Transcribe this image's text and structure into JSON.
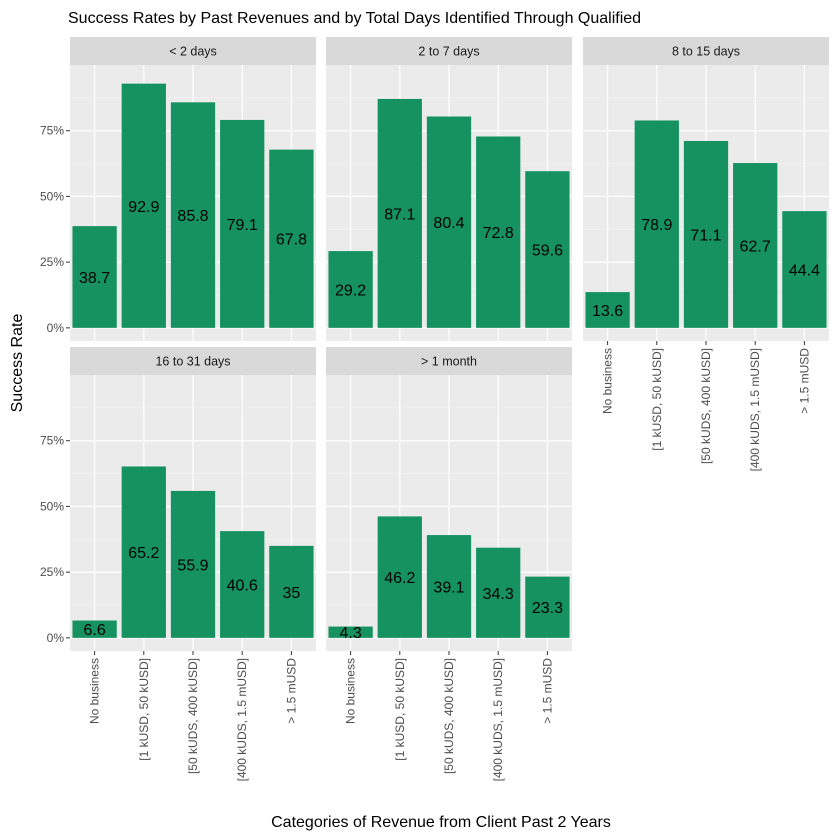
{
  "chart_data": {
    "type": "bar",
    "title": "Success Rates by Past Revenues and by Total Days Identified Through Qualified",
    "xlabel": "Categories of Revenue from Client Past 2 Years",
    "ylabel": "Success Rate",
    "categories": [
      "No business",
      "[1 kUSD, 50 kUSD]",
      "[50 kUDS, 400 kUSD]",
      "[400 kUDS, 1.5 mUSD]",
      "> 1.5 mUSD"
    ],
    "yticks": [
      0,
      25,
      50,
      75
    ],
    "ytick_labels": [
      "0%",
      "25%",
      "50%",
      "75%"
    ],
    "ylim": [
      0,
      100
    ],
    "bar_color": "#15925f",
    "panel_bg": "#ebebeb",
    "strip_bg": "#d9d9d9",
    "facets": [
      {
        "label": "< 2 days",
        "values": [
          38.7,
          92.9,
          85.8,
          79.1,
          67.8
        ],
        "labels": [
          "38.7",
          "92.9",
          "85.8",
          "79.1",
          "67.8"
        ]
      },
      {
        "label": "2 to 7 days",
        "values": [
          29.2,
          87.1,
          80.4,
          72.8,
          59.6
        ],
        "labels": [
          "29.2",
          "87.1",
          "80.4",
          "72.8",
          "59.6"
        ]
      },
      {
        "label": "8 to 15 days",
        "values": [
          13.6,
          78.9,
          71.1,
          62.7,
          44.4
        ],
        "labels": [
          "13.6",
          "78.9",
          "71.1",
          "62.7",
          "44.4"
        ]
      },
      {
        "label": "16 to 31 days",
        "values": [
          6.6,
          65.2,
          55.9,
          40.6,
          35
        ],
        "labels": [
          "6.6",
          "65.2",
          "55.9",
          "40.6",
          "35"
        ]
      },
      {
        "label": "> 1 month",
        "values": [
          4.3,
          46.2,
          39.1,
          34.3,
          23.3
        ],
        "labels": [
          "4.3",
          "46.2",
          "39.1",
          "34.3",
          "23.3"
        ]
      }
    ]
  }
}
